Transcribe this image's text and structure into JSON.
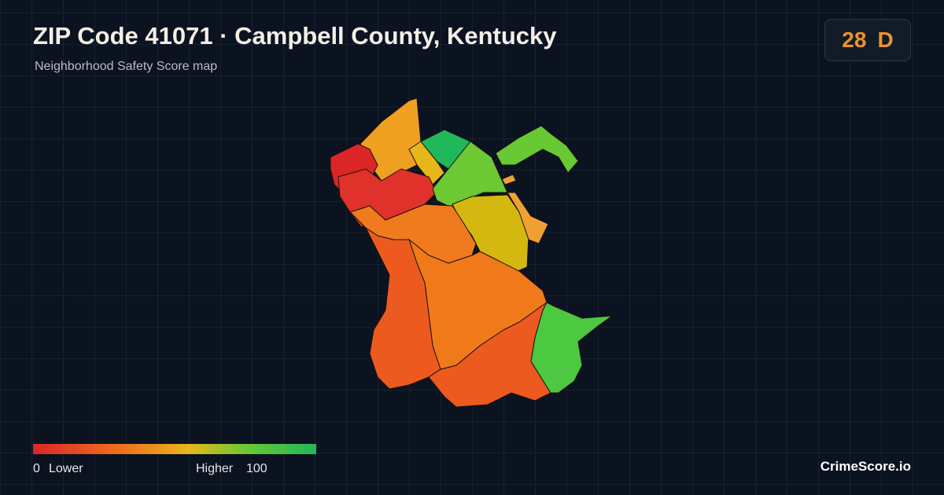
{
  "header": {
    "title": "ZIP Code 41071 · Campbell County, Kentucky",
    "subtitle": "Neighborhood Safety Score map"
  },
  "badge": {
    "score": 28,
    "grade": "D"
  },
  "legend": {
    "min": 0,
    "min_label": "Lower",
    "max_label": "Higher",
    "max": 100
  },
  "brand": "CrimeScore.io"
}
